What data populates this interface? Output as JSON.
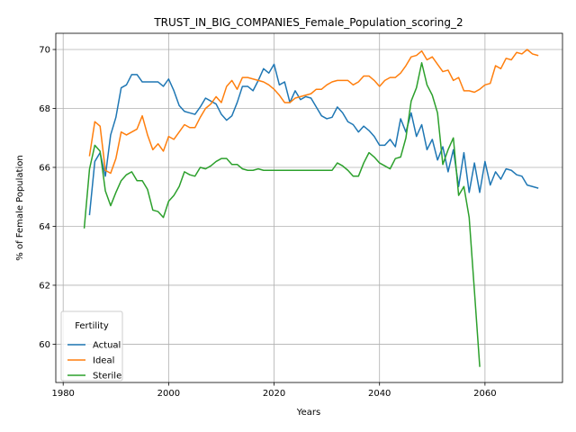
{
  "chart_data": {
    "type": "line",
    "title": "TRUST_IN_BIG_COMPANIES_Female_Population_scoring_2",
    "xlabel": "Years",
    "ylabel": "% of Female Population",
    "xlim": [
      1978.6,
      2074.7
    ],
    "ylim": [
      58.7,
      70.55
    ],
    "xticks": [
      1980,
      2000,
      2020,
      2040,
      2060
    ],
    "yticks": [
      60,
      62,
      64,
      66,
      68,
      70
    ],
    "grid": true,
    "legend": {
      "title": "Fertility",
      "placement": "lower-left"
    },
    "series": [
      {
        "name": "Actual",
        "color": "#1f77b4",
        "x": [
          1985,
          1986,
          1987,
          1988,
          1989,
          1990,
          1991,
          1992,
          1993,
          1994,
          1995,
          1996,
          1997,
          1998,
          1999,
          2000,
          2001,
          2002,
          2003,
          2004,
          2005,
          2006,
          2007,
          2008,
          2009,
          2010,
          2011,
          2012,
          2013,
          2014,
          2015,
          2016,
          2017,
          2018,
          2019,
          2020,
          2021,
          2022,
          2023,
          2024,
          2025,
          2026,
          2027,
          2028,
          2029,
          2030,
          2031,
          2032,
          2033,
          2034,
          2035,
          2036,
          2037,
          2038,
          2039,
          2040,
          2041,
          2042,
          2043,
          2044,
          2045,
          2046,
          2047,
          2048,
          2049,
          2050,
          2051,
          2052,
          2053,
          2054,
          2055,
          2056,
          2057,
          2058,
          2059,
          2060,
          2061,
          2062,
          2063,
          2064,
          2065,
          2066,
          2067,
          2068,
          2069,
          2070
        ],
        "values": [
          64.4,
          66.2,
          66.5,
          65.7,
          67.1,
          67.7,
          68.7,
          68.8,
          69.15,
          69.15,
          68.9,
          68.9,
          68.9,
          68.9,
          68.75,
          69.0,
          68.6,
          68.1,
          67.9,
          67.85,
          67.8,
          68.05,
          68.35,
          68.25,
          68.15,
          67.8,
          67.6,
          67.75,
          68.2,
          68.75,
          68.75,
          68.6,
          68.95,
          69.35,
          69.2,
          69.5,
          68.8,
          68.9,
          68.2,
          68.6,
          68.3,
          68.4,
          68.35,
          68.05,
          67.75,
          67.65,
          67.7,
          68.05,
          67.85,
          67.55,
          67.45,
          67.2,
          67.4,
          67.25,
          67.05,
          66.75,
          66.75,
          66.95,
          66.7,
          67.65,
          67.2,
          67.85,
          67.05,
          67.45,
          66.6,
          66.95,
          66.25,
          66.7,
          65.85,
          66.6,
          65.35,
          66.5,
          65.15,
          66.15,
          65.15,
          66.2,
          65.4,
          65.85,
          65.6,
          65.95,
          65.9,
          65.75,
          65.7,
          65.4,
          65.35,
          65.3
        ]
      },
      {
        "name": "Ideal",
        "color": "#ff7f0e",
        "x": [
          1985,
          1986,
          1987,
          1988,
          1989,
          1990,
          1991,
          1992,
          1993,
          1994,
          1995,
          1996,
          1997,
          1998,
          1999,
          2000,
          2001,
          2002,
          2003,
          2004,
          2005,
          2006,
          2007,
          2008,
          2009,
          2010,
          2011,
          2012,
          2013,
          2014,
          2015,
          2016,
          2017,
          2018,
          2019,
          2020,
          2021,
          2022,
          2023,
          2024,
          2025,
          2026,
          2027,
          2028,
          2029,
          2030,
          2031,
          2032,
          2033,
          2034,
          2035,
          2036,
          2037,
          2038,
          2039,
          2040,
          2041,
          2042,
          2043,
          2044,
          2045,
          2046,
          2047,
          2048,
          2049,
          2050,
          2051,
          2052,
          2053,
          2054,
          2055,
          2056,
          2057,
          2058,
          2059,
          2060,
          2061,
          2062,
          2063,
          2064,
          2065,
          2066,
          2067,
          2068,
          2069,
          2070
        ],
        "values": [
          66.4,
          67.55,
          67.4,
          65.9,
          65.8,
          66.3,
          67.2,
          67.1,
          67.2,
          67.3,
          67.75,
          67.1,
          66.6,
          66.8,
          66.55,
          67.05,
          66.95,
          67.2,
          67.45,
          67.35,
          67.35,
          67.7,
          68.0,
          68.15,
          68.4,
          68.2,
          68.75,
          68.95,
          68.65,
          69.05,
          69.05,
          69.0,
          68.95,
          68.9,
          68.8,
          68.65,
          68.45,
          68.2,
          68.2,
          68.35,
          68.4,
          68.45,
          68.5,
          68.65,
          68.65,
          68.8,
          68.9,
          68.95,
          68.95,
          68.95,
          68.8,
          68.9,
          69.1,
          69.1,
          68.95,
          68.75,
          68.95,
          69.05,
          69.05,
          69.2,
          69.45,
          69.75,
          69.8,
          69.95,
          69.65,
          69.75,
          69.5,
          69.25,
          69.3,
          68.95,
          69.05,
          68.6,
          68.6,
          68.55,
          68.65,
          68.8,
          68.85,
          69.45,
          69.35,
          69.7,
          69.65,
          69.9,
          69.85,
          70.0,
          69.85,
          69.8
        ]
      },
      {
        "name": "Sterile",
        "color": "#2ca02c",
        "x": [
          1984,
          1985,
          1986,
          1987,
          1988,
          1989,
          1990,
          1991,
          1992,
          1993,
          1994,
          1995,
          1996,
          1997,
          1998,
          1999,
          2000,
          2001,
          2002,
          2003,
          2004,
          2005,
          2006,
          2007,
          2008,
          2009,
          2010,
          2011,
          2012,
          2013,
          2014,
          2015,
          2016,
          2017,
          2018,
          2019,
          2020,
          2021,
          2022,
          2023,
          2024,
          2025,
          2026,
          2027,
          2028,
          2029,
          2030,
          2031,
          2032,
          2033,
          2034,
          2035,
          2036,
          2037,
          2038,
          2039,
          2040,
          2041,
          2042,
          2043,
          2044,
          2045,
          2046,
          2047,
          2048,
          2049,
          2050,
          2051,
          2052,
          2053,
          2054,
          2055,
          2056,
          2057,
          2058,
          2059
        ],
        "values": [
          63.95,
          65.95,
          66.75,
          66.55,
          65.2,
          64.7,
          65.15,
          65.55,
          65.75,
          65.85,
          65.55,
          65.55,
          65.25,
          64.55,
          64.5,
          64.3,
          64.85,
          65.05,
          65.35,
          65.85,
          65.75,
          65.7,
          66.0,
          65.95,
          66.05,
          66.2,
          66.3,
          66.3,
          66.1,
          66.1,
          65.95,
          65.9,
          65.9,
          65.95,
          65.9,
          65.9,
          65.9,
          65.9,
          65.9,
          65.9,
          65.9,
          65.9,
          65.9,
          65.9,
          65.9,
          65.9,
          65.9,
          65.9,
          66.15,
          66.05,
          65.9,
          65.7,
          65.7,
          66.15,
          66.5,
          66.35,
          66.15,
          66.05,
          65.95,
          66.3,
          66.35,
          67.0,
          68.25,
          68.7,
          69.55,
          68.8,
          68.45,
          67.85,
          66.1,
          66.6,
          67.0,
          65.05,
          65.35,
          64.3,
          61.8,
          59.25
        ]
      }
    ]
  }
}
